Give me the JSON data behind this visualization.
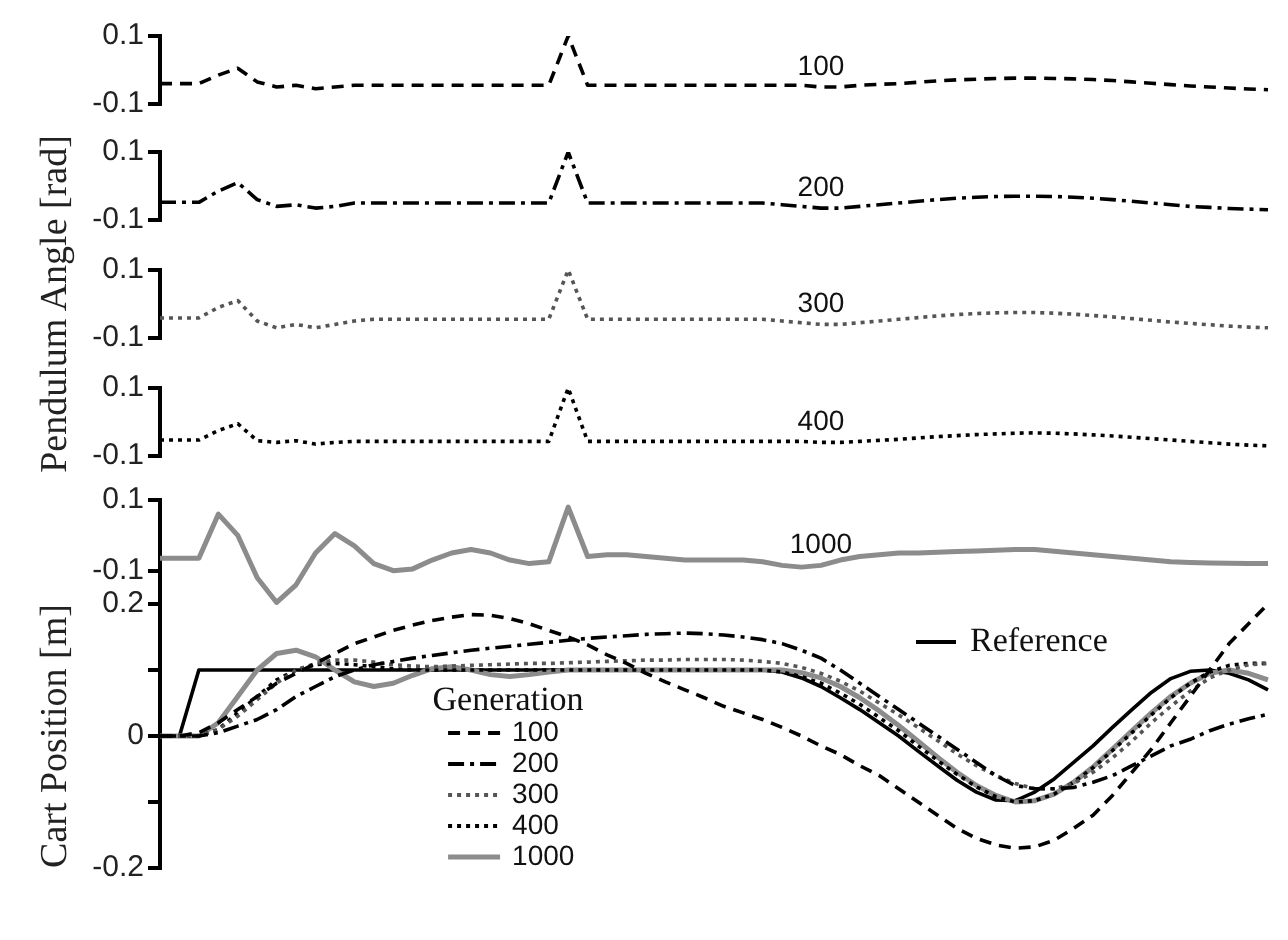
{
  "chart_data": [
    {
      "type": "line",
      "categories": [
        null,
        null,
        null,
        null,
        null,
        null,
        null,
        null,
        null,
        null,
        null,
        null,
        null,
        null,
        null,
        null,
        null,
        null,
        null,
        null,
        null,
        null,
        null,
        null,
        null,
        null,
        null,
        null,
        null,
        null,
        null,
        null,
        null,
        null,
        null,
        null,
        null,
        null,
        null,
        null,
        null,
        null,
        null,
        null,
        null,
        null,
        null,
        null,
        null,
        null,
        null,
        null,
        null,
        null,
        null,
        null,
        null,
        null
      ],
      "ylim": [
        -0.1,
        0.1
      ],
      "yticks": [
        -0.1,
        0.1
      ],
      "tick_labels": "y",
      "series": [
        {
          "name": "100",
          "color": "#000000",
          "line_style": "dashed",
          "values": [
            -0.04,
            -0.04,
            -0.04,
            -0.015,
            0.005,
            -0.035,
            -0.05,
            -0.045,
            -0.055,
            -0.05,
            -0.045,
            -0.045,
            -0.045,
            -0.045,
            -0.045,
            -0.045,
            -0.045,
            -0.045,
            -0.045,
            -0.045,
            -0.045,
            0.1,
            -0.045,
            -0.045,
            -0.045,
            -0.045,
            -0.045,
            -0.045,
            -0.045,
            -0.045,
            -0.045,
            -0.045,
            -0.045,
            -0.045,
            -0.05,
            -0.05,
            -0.045,
            -0.042,
            -0.04,
            -0.036,
            -0.032,
            -0.029,
            -0.027,
            -0.025,
            -0.024,
            -0.024,
            -0.025,
            -0.026,
            -0.028,
            -0.031,
            -0.035,
            -0.039,
            -0.043,
            -0.047,
            -0.05,
            -0.053,
            -0.056,
            -0.058
          ]
        }
      ]
    },
    {
      "type": "line",
      "categories": [
        null,
        null,
        null,
        null,
        null,
        null,
        null,
        null,
        null,
        null,
        null,
        null,
        null,
        null,
        null,
        null,
        null,
        null,
        null,
        null,
        null,
        null,
        null,
        null,
        null,
        null,
        null,
        null,
        null,
        null,
        null,
        null,
        null,
        null,
        null,
        null,
        null,
        null,
        null,
        null,
        null,
        null,
        null,
        null,
        null,
        null,
        null,
        null,
        null,
        null,
        null,
        null,
        null,
        null,
        null,
        null,
        null,
        null
      ],
      "ylim": [
        -0.1,
        0.1
      ],
      "yticks": [
        -0.1,
        0.1
      ],
      "tick_labels": "y",
      "series": [
        {
          "name": "200",
          "color": "#000000",
          "line_style": "dashdot",
          "values": [
            -0.048,
            -0.048,
            -0.048,
            -0.015,
            0.01,
            -0.04,
            -0.06,
            -0.055,
            -0.065,
            -0.06,
            -0.05,
            -0.05,
            -0.05,
            -0.05,
            -0.05,
            -0.05,
            -0.05,
            -0.05,
            -0.05,
            -0.05,
            -0.05,
            0.1,
            -0.05,
            -0.05,
            -0.05,
            -0.05,
            -0.05,
            -0.05,
            -0.05,
            -0.05,
            -0.05,
            -0.05,
            -0.055,
            -0.06,
            -0.065,
            -0.065,
            -0.06,
            -0.055,
            -0.05,
            -0.045,
            -0.04,
            -0.036,
            -0.033,
            -0.031,
            -0.03,
            -0.03,
            -0.031,
            -0.033,
            -0.036,
            -0.04,
            -0.045,
            -0.05,
            -0.055,
            -0.06,
            -0.063,
            -0.066,
            -0.068,
            -0.07
          ]
        }
      ]
    },
    {
      "type": "line",
      "ylabel": "Pendulum Angle [rad]",
      "categories": [
        null,
        null,
        null,
        null,
        null,
        null,
        null,
        null,
        null,
        null,
        null,
        null,
        null,
        null,
        null,
        null,
        null,
        null,
        null,
        null,
        null,
        null,
        null,
        null,
        null,
        null,
        null,
        null,
        null,
        null,
        null,
        null,
        null,
        null,
        null,
        null,
        null,
        null,
        null,
        null,
        null,
        null,
        null,
        null,
        null,
        null,
        null,
        null,
        null,
        null,
        null,
        null,
        null,
        null,
        null,
        null,
        null,
        null
      ],
      "ylim": [
        -0.1,
        0.1
      ],
      "yticks": [
        -0.1,
        0.1
      ],
      "tick_labels": "y",
      "series": [
        {
          "name": "300",
          "color": "#555555",
          "line_style": "dotted",
          "values": [
            -0.041,
            -0.041,
            -0.041,
            -0.01,
            0.01,
            -0.05,
            -0.07,
            -0.06,
            -0.07,
            -0.06,
            -0.05,
            -0.045,
            -0.045,
            -0.045,
            -0.045,
            -0.045,
            -0.045,
            -0.045,
            -0.045,
            -0.045,
            -0.045,
            0.1,
            -0.045,
            -0.045,
            -0.045,
            -0.045,
            -0.045,
            -0.045,
            -0.045,
            -0.045,
            -0.045,
            -0.045,
            -0.05,
            -0.055,
            -0.06,
            -0.06,
            -0.055,
            -0.05,
            -0.045,
            -0.04,
            -0.035,
            -0.031,
            -0.028,
            -0.026,
            -0.025,
            -0.025,
            -0.027,
            -0.03,
            -0.034,
            -0.038,
            -0.043,
            -0.048,
            -0.053,
            -0.057,
            -0.061,
            -0.065,
            -0.068,
            -0.07
          ]
        }
      ]
    },
    {
      "type": "line",
      "categories": [
        null,
        null,
        null,
        null,
        null,
        null,
        null,
        null,
        null,
        null,
        null,
        null,
        null,
        null,
        null,
        null,
        null,
        null,
        null,
        null,
        null,
        null,
        null,
        null,
        null,
        null,
        null,
        null,
        null,
        null,
        null,
        null,
        null,
        null,
        null,
        null,
        null,
        null,
        null,
        null,
        null,
        null,
        null,
        null,
        null,
        null,
        null,
        null,
        null,
        null,
        null,
        null,
        null,
        null,
        null,
        null,
        null,
        null
      ],
      "ylim": [
        -0.1,
        0.1
      ],
      "yticks": [
        -0.1,
        0.1
      ],
      "tick_labels": "y",
      "series": [
        {
          "name": "400",
          "color": "#000000",
          "line_style": "dotted",
          "values": [
            -0.053,
            -0.053,
            -0.053,
            -0.025,
            -0.005,
            -0.055,
            -0.06,
            -0.055,
            -0.065,
            -0.06,
            -0.057,
            -0.057,
            -0.057,
            -0.057,
            -0.057,
            -0.057,
            -0.057,
            -0.057,
            -0.057,
            -0.057,
            -0.057,
            0.1,
            -0.057,
            -0.057,
            -0.057,
            -0.057,
            -0.057,
            -0.057,
            -0.057,
            -0.057,
            -0.057,
            -0.057,
            -0.057,
            -0.057,
            -0.06,
            -0.06,
            -0.057,
            -0.054,
            -0.051,
            -0.047,
            -0.043,
            -0.04,
            -0.037,
            -0.035,
            -0.033,
            -0.032,
            -0.033,
            -0.035,
            -0.038,
            -0.041,
            -0.045,
            -0.049,
            -0.053,
            -0.057,
            -0.061,
            -0.065,
            -0.068,
            -0.07
          ]
        }
      ]
    },
    {
      "type": "line",
      "categories": [
        null,
        null,
        null,
        null,
        null,
        null,
        null,
        null,
        null,
        null,
        null,
        null,
        null,
        null,
        null,
        null,
        null,
        null,
        null,
        null,
        null,
        null,
        null,
        null,
        null,
        null,
        null,
        null,
        null,
        null,
        null,
        null,
        null,
        null,
        null,
        null,
        null,
        null,
        null,
        null,
        null,
        null,
        null,
        null,
        null,
        null,
        null,
        null,
        null,
        null,
        null,
        null,
        null,
        null,
        null,
        null,
        null,
        null
      ],
      "ylim": [
        -0.2,
        0.1
      ],
      "yticks": [
        -0.1,
        0.1
      ],
      "tick_labels": "y",
      "series": [
        {
          "name": "1000",
          "color": "#8c8c8c",
          "line_style": "solid",
          "values": [
            -0.065,
            -0.065,
            -0.065,
            0.06,
            0.0,
            -0.12,
            -0.19,
            -0.14,
            -0.05,
            0.005,
            -0.03,
            -0.08,
            -0.1,
            -0.095,
            -0.07,
            -0.05,
            -0.04,
            -0.05,
            -0.07,
            -0.08,
            -0.075,
            0.08,
            -0.06,
            -0.055,
            -0.055,
            -0.06,
            -0.065,
            -0.07,
            -0.07,
            -0.07,
            -0.07,
            -0.075,
            -0.085,
            -0.09,
            -0.085,
            -0.07,
            -0.06,
            -0.055,
            -0.05,
            -0.05,
            -0.048,
            -0.046,
            -0.044,
            -0.042,
            -0.04,
            -0.04,
            -0.045,
            -0.05,
            -0.055,
            -0.06,
            -0.065,
            -0.07,
            -0.075,
            -0.077,
            -0.078,
            -0.079,
            -0.08,
            -0.08
          ]
        }
      ]
    },
    {
      "type": "line",
      "ylabel": "Cart Position [m]",
      "legend": "bottom",
      "legend_title": "Generation",
      "categories": [
        null,
        null,
        null,
        null,
        null,
        null,
        null,
        null,
        null,
        null,
        null,
        null,
        null,
        null,
        null,
        null,
        null,
        null,
        null,
        null,
        null,
        null,
        null,
        null,
        null,
        null,
        null,
        null,
        null,
        null,
        null,
        null,
        null,
        null,
        null,
        null,
        null,
        null,
        null,
        null,
        null,
        null,
        null,
        null,
        null,
        null,
        null,
        null,
        null,
        null,
        null,
        null,
        null,
        null,
        null,
        null,
        null,
        null
      ],
      "ylim": [
        -0.2,
        0.2
      ],
      "yticks": [
        -0.2,
        {
          "value": -0.1,
          "label": null
        },
        0,
        {
          "value": 0.1,
          "label": null
        },
        0.2
      ],
      "tick_labels": "y",
      "series": [
        {
          "name": "100",
          "color": "#000000",
          "line_style": "dashed",
          "values": [
            0,
            0,
            0.005,
            0.02,
            0.04,
            0.06,
            0.08,
            0.095,
            0.11,
            0.125,
            0.14,
            0.15,
            0.16,
            0.168,
            0.175,
            0.18,
            0.184,
            0.183,
            0.178,
            0.17,
            0.16,
            0.15,
            0.138,
            0.123,
            0.11,
            0.095,
            0.082,
            0.07,
            0.058,
            0.045,
            0.035,
            0.025,
            0.013,
            0.0,
            -0.015,
            -0.028,
            -0.045,
            -0.06,
            -0.08,
            -0.1,
            -0.12,
            -0.14,
            -0.155,
            -0.165,
            -0.17,
            -0.168,
            -0.158,
            -0.14,
            -0.12,
            -0.09,
            -0.055,
            -0.02,
            0.02,
            0.06,
            0.1,
            0.14,
            0.17,
            0.2
          ]
        },
        {
          "name": "200",
          "color": "#000000",
          "line_style": "dashdot",
          "values": [
            0,
            0,
            0,
            0.005,
            0.015,
            0.025,
            0.04,
            0.06,
            0.075,
            0.09,
            0.1,
            0.108,
            0.113,
            0.118,
            0.122,
            0.126,
            0.13,
            0.133,
            0.136,
            0.139,
            0.142,
            0.145,
            0.148,
            0.15,
            0.152,
            0.154,
            0.155,
            0.156,
            0.155,
            0.153,
            0.15,
            0.146,
            0.14,
            0.13,
            0.118,
            0.1,
            0.08,
            0.06,
            0.04,
            0.02,
            0.0,
            -0.02,
            -0.04,
            -0.06,
            -0.075,
            -0.08,
            -0.08,
            -0.078,
            -0.07,
            -0.06,
            -0.045,
            -0.03,
            -0.015,
            -0.005,
            0.008,
            0.018,
            0.026,
            0.033
          ]
        },
        {
          "name": "300",
          "color": "#555555",
          "line_style": "dotted",
          "values": [
            0,
            0,
            0,
            0.01,
            0.03,
            0.055,
            0.08,
            0.1,
            0.11,
            0.115,
            0.115,
            0.112,
            0.108,
            0.106,
            0.105,
            0.106,
            0.107,
            0.108,
            0.109,
            0.11,
            0.11,
            0.111,
            0.112,
            0.113,
            0.114,
            0.115,
            0.115,
            0.116,
            0.116,
            0.116,
            0.115,
            0.113,
            0.11,
            0.104,
            0.095,
            0.083,
            0.068,
            0.05,
            0.032,
            0.013,
            -0.007,
            -0.027,
            -0.045,
            -0.06,
            -0.072,
            -0.08,
            -0.08,
            -0.072,
            -0.055,
            -0.033,
            -0.008,
            0.02,
            0.045,
            0.068,
            0.088,
            0.1,
            0.108,
            0.11
          ]
        },
        {
          "name": "400",
          "color": "#000000",
          "line_style": "dotted",
          "values": [
            0,
            0,
            0,
            0.01,
            0.035,
            0.06,
            0.085,
            0.1,
            0.108,
            0.11,
            0.108,
            0.105,
            0.102,
            0.1,
            0.1,
            0.1,
            0.1,
            0.1,
            0.1,
            0.1,
            0.1,
            0.1,
            0.1,
            0.1,
            0.1,
            0.1,
            0.1,
            0.1,
            0.1,
            0.1,
            0.1,
            0.1,
            0.097,
            0.09,
            0.08,
            0.065,
            0.048,
            0.028,
            0.008,
            -0.015,
            -0.037,
            -0.058,
            -0.077,
            -0.092,
            -0.1,
            -0.098,
            -0.088,
            -0.07,
            -0.048,
            -0.022,
            0.005,
            0.032,
            0.058,
            0.08,
            0.097,
            0.107,
            0.11,
            0.11
          ]
        },
        {
          "name": "1000",
          "color": "#8c8c8c",
          "line_style": "solid",
          "values": [
            0,
            0,
            0,
            0.02,
            0.06,
            0.1,
            0.125,
            0.13,
            0.12,
            0.1,
            0.082,
            0.075,
            0.08,
            0.092,
            0.102,
            0.105,
            0.1,
            0.093,
            0.09,
            0.093,
            0.097,
            0.1,
            0.1,
            0.1,
            0.1,
            0.1,
            0.1,
            0.1,
            0.1,
            0.1,
            0.1,
            0.1,
            0.1,
            0.096,
            0.088,
            0.075,
            0.058,
            0.038,
            0.016,
            -0.008,
            -0.032,
            -0.055,
            -0.075,
            -0.09,
            -0.1,
            -0.098,
            -0.088,
            -0.07,
            -0.047,
            -0.02,
            0.008,
            0.035,
            0.06,
            0.08,
            0.095,
            0.1,
            0.095,
            0.085
          ]
        },
        {
          "name": "Reference",
          "color": "#000000",
          "line_style": "solid",
          "values": [
            0,
            0,
            0.1,
            0.1,
            0.1,
            0.1,
            0.1,
            0.1,
            0.1,
            0.1,
            0.1,
            0.1,
            0.1,
            0.1,
            0.1,
            0.1,
            0.1,
            0.1,
            0.1,
            0.1,
            0.1,
            0.1,
            0.1,
            0.1,
            0.1,
            0.1,
            0.1,
            0.1,
            0.1,
            0.1,
            0.1,
            0.1,
            0.097,
            0.088,
            0.075,
            0.058,
            0.04,
            0.02,
            0.0,
            -0.023,
            -0.045,
            -0.067,
            -0.085,
            -0.097,
            -0.098,
            -0.085,
            -0.065,
            -0.04,
            -0.015,
            0.013,
            0.04,
            0.066,
            0.087,
            0.098,
            0.1,
            0.095,
            0.085,
            0.07
          ]
        }
      ]
    }
  ]
}
